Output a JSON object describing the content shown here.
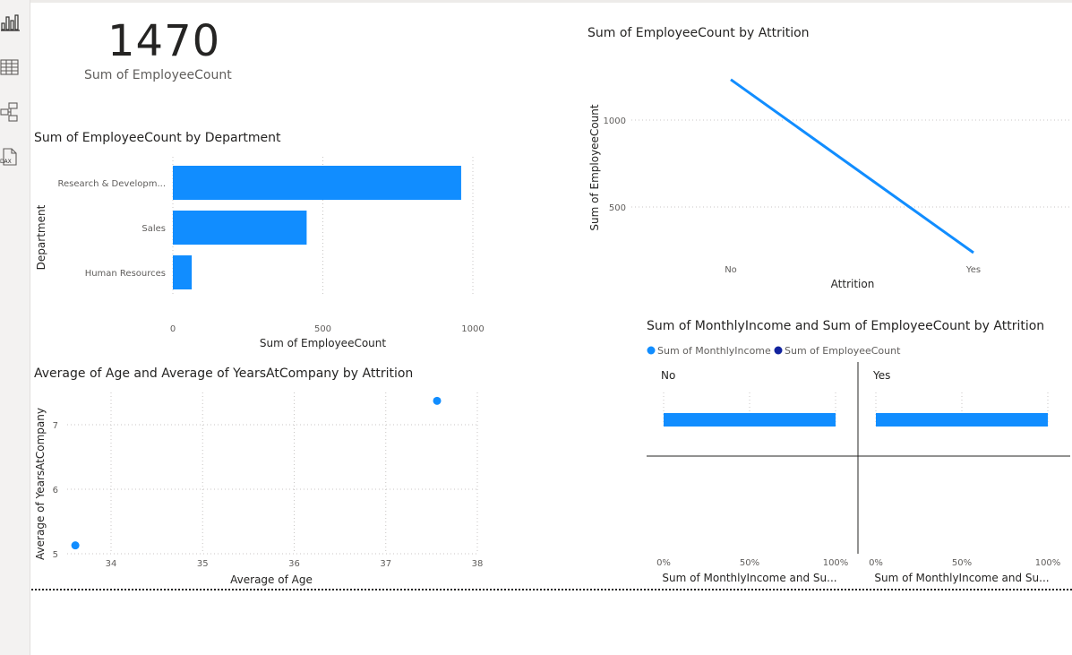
{
  "nav": {
    "items": [
      {
        "name": "report-view",
        "icon": "bar-chart-icon"
      },
      {
        "name": "table-view",
        "icon": "table-grid-icon"
      },
      {
        "name": "model-view",
        "icon": "model-diagram-icon"
      },
      {
        "name": "dax-query-view",
        "icon": "dax-query-icon"
      }
    ]
  },
  "kpi_card": {
    "value": "1470",
    "label": "Sum of EmployeeCount"
  },
  "colors": {
    "accent": "#118DFF",
    "dark_series": "#12239E",
    "grid": "#c8c6c4",
    "text": "#252423",
    "muted": "#605e5c"
  },
  "chart_data": [
    {
      "id": "dept_bar",
      "type": "bar",
      "orientation": "horizontal",
      "title": "Sum of EmployeeCount by Department",
      "xlabel": "Sum of EmployeeCount",
      "ylabel": "Department",
      "categories": [
        "Research & Developm...",
        "Sales",
        "Human Resources"
      ],
      "values": [
        961,
        446,
        63
      ],
      "xlim": [
        0,
        1000
      ],
      "xticks": [
        0,
        500,
        1000
      ],
      "tick_labels": [
        "0",
        "500",
        "1000"
      ],
      "grid": true
    },
    {
      "id": "attrition_line",
      "type": "line",
      "title": "Sum of EmployeeCount by Attrition",
      "xlabel": "Attrition",
      "ylabel": "Sum of EmployeeCount",
      "categories": [
        "No",
        "Yes"
      ],
      "values": [
        1233,
        237
      ],
      "yticks": [
        500,
        1000
      ],
      "tick_labels": [
        "500",
        "1000"
      ],
      "grid": true
    },
    {
      "id": "age_scatter",
      "type": "scatter",
      "title": "Average of Age and Average of YearsAtCompany by Attrition",
      "xlabel": "Average of Age",
      "ylabel": "Average of YearsAtCompany",
      "points": [
        {
          "x": 33.61,
          "y": 5.13
        },
        {
          "x": 37.56,
          "y": 7.37
        }
      ],
      "xticks": [
        34,
        35,
        36,
        37,
        38
      ],
      "yticks": [
        5,
        6,
        7
      ],
      "xtick_labels": [
        "34",
        "35",
        "36",
        "37",
        "38"
      ],
      "ytick_labels": [
        "5",
        "6",
        "7"
      ],
      "grid": true
    },
    {
      "id": "income_small_multiples",
      "type": "bar",
      "orientation": "horizontal",
      "stacking": "100%",
      "title": "Sum of MonthlyIncome and Sum of EmployeeCount by Attrition",
      "legend": {
        "position": "top-left",
        "entries": [
          "Sum of MonthlyIncome",
          "Sum of EmployeeCount"
        ]
      },
      "panels": [
        {
          "label": "No",
          "xlabel": "Sum of MonthlyIncome and Su...",
          "values": [
            {
              "series": "Sum of MonthlyIncome",
              "value": 100
            }
          ]
        },
        {
          "label": "Yes",
          "xlabel": "Sum of MonthlyIncome and Su...",
          "values": [
            {
              "series": "Sum of MonthlyIncome",
              "value": 100
            }
          ]
        }
      ],
      "xticks": [
        0,
        50,
        100
      ],
      "tick_labels": [
        "0%",
        "50%",
        "100%"
      ],
      "grid": true
    }
  ]
}
